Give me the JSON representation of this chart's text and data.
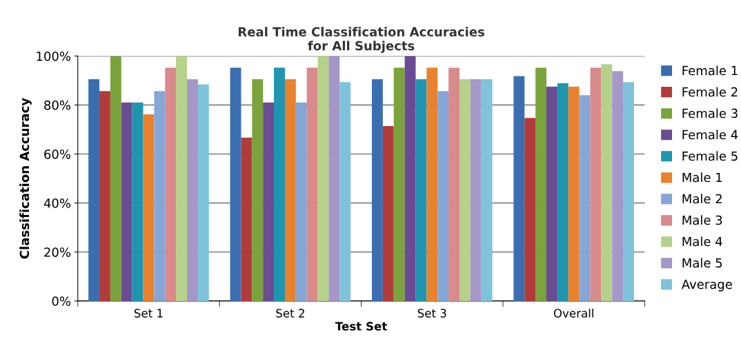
{
  "chart_data": {
    "type": "bar",
    "title": "Real Time Classification Accuracies\nfor All Subjects",
    "xlabel": "Test Set",
    "ylabel": "Classification Accuracy",
    "categories": [
      "Set 1",
      "Set 2",
      "Set 3",
      "Overall"
    ],
    "series": [
      {
        "name": "Female 1",
        "color": "#3a6eb0",
        "values": [
          90.5,
          95.2,
          90.5,
          91.8
        ]
      },
      {
        "name": "Female 2",
        "color": "#b23b3b",
        "values": [
          85.7,
          66.7,
          71.4,
          74.7
        ]
      },
      {
        "name": "Female 3",
        "color": "#7aa33c",
        "values": [
          100,
          90.5,
          95.2,
          95.2
        ]
      },
      {
        "name": "Female 4",
        "color": "#6a4c93",
        "values": [
          81,
          81,
          100,
          87.5
        ]
      },
      {
        "name": "Female 5",
        "color": "#1f95b0",
        "values": [
          81,
          95.2,
          90.5,
          88.9
        ]
      },
      {
        "name": "Male 1",
        "color": "#e8822e",
        "values": [
          76.2,
          90.5,
          95.2,
          87.5
        ]
      },
      {
        "name": "Male 2",
        "color": "#86a6d8",
        "values": [
          85.7,
          81,
          85.7,
          84
        ]
      },
      {
        "name": "Male 3",
        "color": "#d98a8a",
        "values": [
          95.2,
          95.2,
          95.2,
          95.2
        ]
      },
      {
        "name": "Male 4",
        "color": "#b5d18a",
        "values": [
          100,
          100,
          90.5,
          96.6
        ]
      },
      {
        "name": "Male 5",
        "color": "#a597c8",
        "values": [
          90.5,
          100,
          90.5,
          93.8
        ]
      },
      {
        "name": "Average",
        "color": "#7ec3d9",
        "values": [
          88.4,
          89.3,
          90.5,
          89.3
        ]
      }
    ],
    "ylim": [
      0,
      100
    ],
    "yticks": [
      {
        "value": 0,
        "label": "0%"
      },
      {
        "value": 20,
        "label": "20%"
      },
      {
        "value": 40,
        "label": "40%"
      },
      {
        "value": 60,
        "label": "60%"
      },
      {
        "value": 80,
        "label": "80%"
      },
      {
        "value": 100,
        "label": "100%"
      }
    ],
    "grid": "y",
    "legend": "right"
  }
}
